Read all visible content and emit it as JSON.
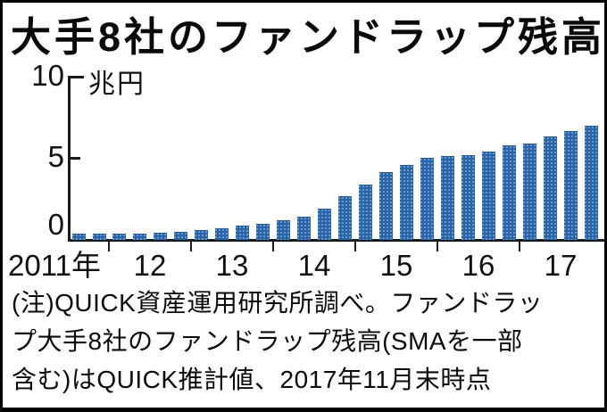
{
  "header": {
    "title": "大手8社のファンドラップ残高"
  },
  "axis": {
    "unit_label": "兆円",
    "y_tick_labels": [
      "10",
      "5",
      "0"
    ],
    "x_first_label": "2011年",
    "x_year_labels": [
      "12",
      "13",
      "14",
      "15",
      "16",
      "17"
    ]
  },
  "note": {
    "lines": [
      "(注)QUICK資産運用研究所調べ。ファンドラッ",
      "プ大手8社のファンドラップ残高(SMAを一部",
      "含む)はQUICK推計値、2017年11月末時点"
    ],
    "full_text": "(注)QUICK資産運用研究所調べ。ファンドラップ大手8社のファンドラップ残高(SMAを一部含む)はQUICK推計値、2017年11月末時点"
  },
  "colors": {
    "bar": "#2a64a8",
    "bar_halftone_dot": "#88b2de",
    "axis": "#1a1a1a",
    "text": "#0a0a0a",
    "background": "#ffffff",
    "border": "#000000"
  },
  "chart_data": {
    "type": "bar",
    "title": "大手8社のファンドラップ残高",
    "ylabel": "兆円",
    "ylim": [
      0,
      10
    ],
    "yticks": [
      0,
      5,
      10
    ],
    "grid": false,
    "legend": false,
    "x_tick_labels": [
      "2011年",
      "12",
      "13",
      "14",
      "15",
      "16",
      "17"
    ],
    "bars_per_year": {
      "2011": 2,
      "2012": 4,
      "2013": 4,
      "2014": 4,
      "2015": 4,
      "2016": 4,
      "2017": 4
    },
    "series": [
      {
        "name": "ファンドラップ残高(兆円)",
        "periods": [
          "2011/9",
          "2011/12",
          "2012/3",
          "2012/6",
          "2012/9",
          "2012/12",
          "2013/3",
          "2013/6",
          "2013/9",
          "2013/12",
          "2014/3",
          "2014/6",
          "2014/9",
          "2014/12",
          "2015/3",
          "2015/6",
          "2015/9",
          "2015/12",
          "2016/3",
          "2016/6",
          "2016/9",
          "2016/12",
          "2017/3",
          "2017/6",
          "2017/9",
          "2017/11"
        ],
        "values": [
          0.3,
          0.3,
          0.35,
          0.35,
          0.4,
          0.45,
          0.55,
          0.65,
          0.8,
          0.95,
          1.15,
          1.35,
          1.85,
          2.6,
          3.3,
          4.1,
          4.5,
          4.95,
          5.05,
          5.1,
          5.3,
          5.7,
          5.8,
          6.25,
          6.6,
          6.9
        ]
      }
    ],
    "note": "(注)QUICK資産運用研究所調べ。ファンドラップ大手8社のファンドラップ残高(SMAを一部含む)はQUICK推計値、2017年11月末時点"
  }
}
